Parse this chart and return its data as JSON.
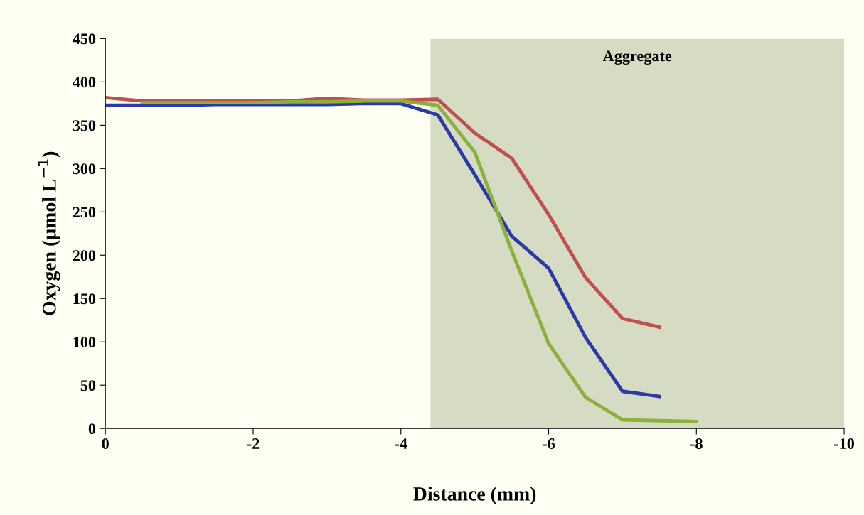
{
  "chart_data": {
    "type": "line",
    "xlabel": "Distance (mm)",
    "ylabel": "Oxygen (µmol L$^{−1}$)",
    "xlim": [
      0,
      -10
    ],
    "xticks": [
      0,
      -2,
      -4,
      -6,
      -8,
      -10
    ],
    "ylim": [
      0,
      450
    ],
    "yticks": [
      0,
      50,
      100,
      150,
      200,
      250,
      300,
      350,
      400,
      450
    ],
    "grid": false,
    "legend": false,
    "marker": "none",
    "line_style": "solid",
    "bands": [
      {
        "axis": "x",
        "from": -4.4,
        "to": -10,
        "label": "Aggregate",
        "color": "#d6dcc4"
      }
    ],
    "series": [
      {
        "color": "#c0504d",
        "x": [
          0,
          -0.5,
          -1,
          -1.5,
          -2,
          -2.5,
          -3,
          -3.5,
          -4,
          -4.5,
          -5,
          -5.5,
          -6,
          -6.5,
          -7,
          -7.5
        ],
        "values": [
          382,
          378,
          378,
          378,
          378,
          378,
          381,
          379,
          379,
          380,
          341,
          312,
          247,
          174,
          127,
          117
        ]
      },
      {
        "color": "#2b3aa8",
        "x": [
          0,
          -0.5,
          -1,
          -1.5,
          -2,
          -2.5,
          -3,
          -3.5,
          -4,
          -4.5,
          -5,
          -5.5,
          -6,
          -6.5,
          -7,
          -7.5
        ],
        "values": [
          373,
          373,
          373,
          374,
          374,
          374,
          374,
          375,
          375,
          362,
          293,
          222,
          185,
          105,
          43,
          37
        ]
      },
      {
        "color": "#8bb03c",
        "x": [
          -0.5,
          -1,
          -1.5,
          -2,
          -2.5,
          -3,
          -3.5,
          -4,
          -4.5,
          -5,
          -5.5,
          -6,
          -6.5,
          -7,
          -7.5,
          -8
        ],
        "values": [
          376,
          376,
          376,
          376,
          377,
          377,
          378,
          378,
          373,
          319,
          205,
          98,
          36,
          10,
          9,
          8
        ]
      }
    ]
  }
}
